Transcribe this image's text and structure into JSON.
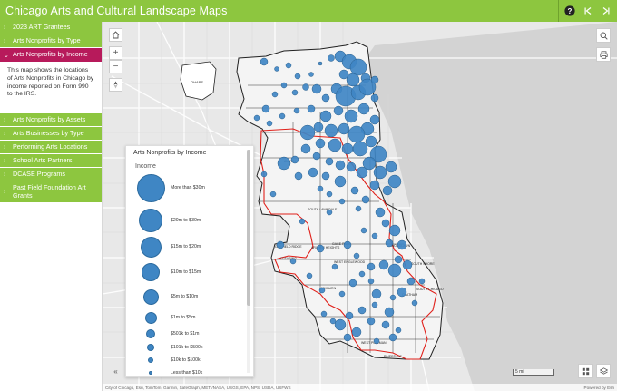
{
  "app": {
    "title": "Chicago Arts and Cultural Landscape Maps",
    "accent": "#8dc63f",
    "active_color": "#b71a5b"
  },
  "header_controls": [
    {
      "name": "help-button",
      "icon": "question-icon"
    },
    {
      "name": "previous-button",
      "icon": "previous-icon"
    },
    {
      "name": "next-button",
      "icon": "next-icon"
    }
  ],
  "sidebar": {
    "items": [
      {
        "label": "2023 ART Grantees",
        "expanded": false
      },
      {
        "label": "Arts Nonprofits by Type",
        "expanded": false
      },
      {
        "label": "Arts Nonprofits by Income",
        "expanded": true
      },
      {
        "label": "Arts Nonprofits by Assets",
        "expanded": false
      },
      {
        "label": "Arts Businesses by Type",
        "expanded": false
      },
      {
        "label": "Performing Arts Locations",
        "expanded": false
      },
      {
        "label": "School Arts Partners",
        "expanded": false
      },
      {
        "label": "DCASE Programs",
        "expanded": false
      },
      {
        "label": "Past Field Foundation Art Grants",
        "expanded": false
      }
    ],
    "description": "This map shows the locations of Arts Nonprofits in Chicago by income reported on Form 990 to the IRS."
  },
  "legend": {
    "title": "Arts Nonprofits by Income",
    "field": "Income",
    "symbol_color": "#3f86c4",
    "classes": [
      "More than $30m",
      "$20m to $30m",
      "$15m to $20m",
      "$10m to $15m",
      "$5m to $10m",
      "$1m to $5m",
      "$501k to $1m",
      "$101k to $500k",
      "$10k to $100k",
      "Less than $10k"
    ]
  },
  "map": {
    "neighborhood_labels": [
      "OHARE",
      "SOUTH LAWNDALE",
      "GARFIELD RIDGE",
      "CLEARING",
      "ARCHER HEIGHTS",
      "GAGE PARK",
      "WEST ENGLEWOOD",
      "ASHBURN",
      "CHATHAM",
      "SOUTH CHICAGO",
      "WEST PULLMAN",
      "RIVERDALE",
      "AUSTIN",
      "WOODLAWN",
      "SOUTH SHORE"
    ],
    "scale_label": "5 mi",
    "attribution": "City of Chicago, Esri, TomTom, Garmin, SafeGraph, METI/NASA, USGS, EPA, NPS, USDA, USFWS",
    "powered_by": "Powered by Esri"
  }
}
